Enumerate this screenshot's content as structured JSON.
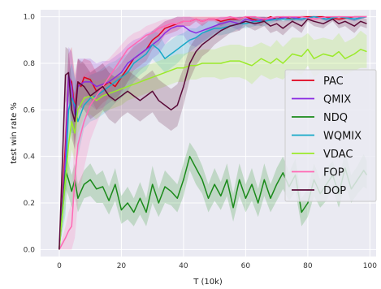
{
  "chart_data": {
    "type": "line",
    "xlabel": "T (10k)",
    "ylabel": "test win rate %",
    "xlim": [
      -6,
      102
    ],
    "ylim": [
      -0.03,
      1.03
    ],
    "xticks": [
      0,
      20,
      40,
      60,
      80,
      100
    ],
    "yticks": [
      0.0,
      0.2,
      0.4,
      0.6,
      0.8,
      1.0
    ],
    "ytick_labels": [
      "0.0",
      "0.2",
      "0.4",
      "0.6",
      "0.8",
      "1.0"
    ],
    "grid": true,
    "legend_position": "center-right",
    "background": "#eaeaf2",
    "series": [
      {
        "name": "PAC",
        "color": "#e0001b",
        "x": [
          0,
          2,
          3,
          4,
          5,
          6,
          7,
          8,
          10,
          12,
          14,
          16,
          18,
          20,
          22,
          24,
          26,
          28,
          30,
          32,
          34,
          36,
          38,
          40,
          42,
          44,
          46,
          48,
          50,
          52,
          55,
          58,
          60,
          62,
          65,
          68,
          70,
          72,
          75,
          78,
          80,
          85,
          90,
          95,
          99
        ],
        "y": [
          0.0,
          0.45,
          0.74,
          0.72,
          0.6,
          0.72,
          0.7,
          0.74,
          0.73,
          0.68,
          0.7,
          0.72,
          0.7,
          0.74,
          0.78,
          0.82,
          0.84,
          0.86,
          0.9,
          0.92,
          0.95,
          0.96,
          0.97,
          0.98,
          0.98,
          0.99,
          0.98,
          0.99,
          0.99,
          0.98,
          0.99,
          0.99,
          1.0,
          0.99,
          0.98,
          1.0,
          0.99,
          1.0,
          0.99,
          1.0,
          1.0,
          1.0,
          0.99,
          1.0,
          1.0
        ],
        "band": [
          0.0,
          0.15,
          0.1,
          0.15,
          0.15,
          0.1,
          0.1,
          0.08,
          0.08,
          0.08,
          0.07,
          0.07,
          0.07,
          0.06,
          0.06,
          0.05,
          0.05,
          0.05,
          0.04,
          0.04,
          0.03,
          0.03,
          0.03,
          0.02,
          0.02,
          0.01,
          0.02,
          0.01,
          0.01,
          0.02,
          0.01,
          0.01,
          0.0,
          0.01,
          0.02,
          0.0,
          0.01,
          0.0,
          0.01,
          0.0,
          0.0,
          0.0,
          0.01,
          0.0,
          0.0
        ]
      },
      {
        "name": "QMIX",
        "color": "#8a2be2",
        "x": [
          0,
          2,
          3,
          4,
          5,
          6,
          8,
          10,
          12,
          14,
          16,
          18,
          20,
          22,
          24,
          26,
          28,
          30,
          32,
          34,
          36,
          38,
          40,
          42,
          44,
          46,
          48,
          50,
          52,
          55,
          58,
          60,
          63,
          66,
          70,
          74,
          78,
          82,
          86,
          90,
          95,
          99
        ],
        "y": [
          0.0,
          0.4,
          0.75,
          0.7,
          0.58,
          0.7,
          0.72,
          0.72,
          0.7,
          0.71,
          0.72,
          0.74,
          0.76,
          0.8,
          0.82,
          0.84,
          0.86,
          0.88,
          0.9,
          0.93,
          0.95,
          0.96,
          0.96,
          0.94,
          0.93,
          0.94,
          0.95,
          0.96,
          0.97,
          0.98,
          0.97,
          0.99,
          0.98,
          0.99,
          0.99,
          1.0,
          0.99,
          1.0,
          0.99,
          1.0,
          0.99,
          1.0
        ],
        "band": [
          0.0,
          0.15,
          0.12,
          0.15,
          0.15,
          0.12,
          0.1,
          0.1,
          0.1,
          0.1,
          0.09,
          0.09,
          0.09,
          0.08,
          0.08,
          0.07,
          0.07,
          0.06,
          0.06,
          0.05,
          0.04,
          0.04,
          0.04,
          0.06,
          0.06,
          0.05,
          0.04,
          0.03,
          0.03,
          0.02,
          0.03,
          0.01,
          0.02,
          0.01,
          0.01,
          0.0,
          0.01,
          0.0,
          0.01,
          0.0,
          0.01,
          0.0
        ]
      },
      {
        "name": "NDQ",
        "color": "#1a8a1a",
        "x": [
          0,
          2,
          3,
          4,
          5,
          6,
          8,
          10,
          12,
          14,
          16,
          18,
          20,
          22,
          24,
          26,
          28,
          30,
          32,
          34,
          36,
          38,
          40,
          42,
          44,
          46,
          48,
          50,
          52,
          54,
          56,
          58,
          60,
          62,
          64,
          66,
          68,
          70,
          72,
          74,
          76,
          78,
          80,
          82,
          84,
          86,
          88,
          90,
          92,
          94,
          96,
          98,
          99
        ],
        "y": [
          0.0,
          0.34,
          0.3,
          0.25,
          0.3,
          0.22,
          0.28,
          0.3,
          0.26,
          0.27,
          0.21,
          0.28,
          0.17,
          0.2,
          0.16,
          0.22,
          0.16,
          0.28,
          0.2,
          0.27,
          0.25,
          0.22,
          0.3,
          0.4,
          0.35,
          0.3,
          0.22,
          0.28,
          0.23,
          0.3,
          0.18,
          0.3,
          0.22,
          0.28,
          0.2,
          0.3,
          0.22,
          0.28,
          0.33,
          0.27,
          0.32,
          0.16,
          0.2,
          0.3,
          0.24,
          0.28,
          0.32,
          0.24,
          0.35,
          0.26,
          0.3,
          0.34,
          0.32
        ],
        "band": [
          0.0,
          0.08,
          0.07,
          0.07,
          0.07,
          0.06,
          0.06,
          0.07,
          0.06,
          0.07,
          0.06,
          0.07,
          0.06,
          0.07,
          0.06,
          0.07,
          0.06,
          0.08,
          0.06,
          0.07,
          0.06,
          0.06,
          0.07,
          0.06,
          0.07,
          0.06,
          0.06,
          0.07,
          0.06,
          0.07,
          0.06,
          0.07,
          0.06,
          0.07,
          0.06,
          0.07,
          0.06,
          0.07,
          0.07,
          0.06,
          0.07,
          0.06,
          0.06,
          0.07,
          0.06,
          0.07,
          0.06,
          0.06,
          0.07,
          0.06,
          0.06,
          0.07,
          0.06
        ]
      },
      {
        "name": "WQMIX",
        "color": "#17a9c8",
        "x": [
          0,
          2,
          3,
          4,
          5,
          6,
          8,
          10,
          12,
          14,
          16,
          18,
          20,
          22,
          24,
          26,
          28,
          30,
          32,
          34,
          36,
          38,
          40,
          42,
          44,
          46,
          48,
          50,
          52,
          55,
          58,
          60,
          63,
          66,
          70,
          74,
          78,
          82,
          86,
          90,
          95,
          99
        ],
        "y": [
          0.0,
          0.3,
          0.6,
          0.65,
          0.62,
          0.55,
          0.62,
          0.65,
          0.66,
          0.68,
          0.7,
          0.72,
          0.74,
          0.76,
          0.8,
          0.82,
          0.84,
          0.88,
          0.86,
          0.82,
          0.84,
          0.86,
          0.88,
          0.9,
          0.91,
          0.93,
          0.94,
          0.95,
          0.95,
          0.96,
          0.97,
          0.97,
          0.98,
          0.98,
          0.99,
          0.99,
          0.99,
          1.0,
          0.99,
          1.0,
          0.99,
          1.0
        ],
        "band": [
          0.0,
          0.15,
          0.15,
          0.15,
          0.12,
          0.15,
          0.1,
          0.1,
          0.1,
          0.1,
          0.1,
          0.09,
          0.09,
          0.08,
          0.08,
          0.07,
          0.07,
          0.06,
          0.07,
          0.06,
          0.06,
          0.06,
          0.05,
          0.05,
          0.04,
          0.04,
          0.04,
          0.03,
          0.03,
          0.03,
          0.02,
          0.02,
          0.02,
          0.02,
          0.01,
          0.01,
          0.01,
          0.0,
          0.01,
          0.0,
          0.01,
          0.0
        ]
      },
      {
        "name": "VDAC",
        "color": "#9bea2a",
        "x": [
          0,
          2,
          3,
          4,
          5,
          6,
          8,
          10,
          12,
          14,
          16,
          18,
          20,
          22,
          24,
          26,
          28,
          30,
          32,
          34,
          36,
          38,
          40,
          42,
          44,
          46,
          48,
          50,
          52,
          55,
          58,
          60,
          62,
          65,
          68,
          70,
          72,
          75,
          78,
          80,
          82,
          85,
          88,
          90,
          92,
          95,
          97,
          99
        ],
        "y": [
          0.0,
          0.3,
          0.45,
          0.55,
          0.5,
          0.6,
          0.65,
          0.66,
          0.64,
          0.66,
          0.67,
          0.68,
          0.69,
          0.7,
          0.71,
          0.72,
          0.73,
          0.74,
          0.75,
          0.76,
          0.77,
          0.78,
          0.78,
          0.79,
          0.79,
          0.8,
          0.8,
          0.8,
          0.8,
          0.81,
          0.81,
          0.8,
          0.79,
          0.82,
          0.8,
          0.82,
          0.8,
          0.84,
          0.83,
          0.86,
          0.82,
          0.84,
          0.83,
          0.85,
          0.82,
          0.84,
          0.86,
          0.85
        ],
        "band": [
          0.0,
          0.12,
          0.12,
          0.12,
          0.12,
          0.1,
          0.08,
          0.08,
          0.08,
          0.07,
          0.07,
          0.07,
          0.07,
          0.06,
          0.06,
          0.06,
          0.06,
          0.06,
          0.06,
          0.06,
          0.06,
          0.06,
          0.06,
          0.06,
          0.06,
          0.06,
          0.06,
          0.06,
          0.07,
          0.07,
          0.07,
          0.07,
          0.08,
          0.07,
          0.07,
          0.08,
          0.07,
          0.07,
          0.08,
          0.07,
          0.08,
          0.07,
          0.07,
          0.08,
          0.07,
          0.07,
          0.08,
          0.07
        ]
      },
      {
        "name": "FOP",
        "color": "#ff69b4",
        "x": [
          0,
          2,
          3,
          4,
          5,
          6,
          8,
          10,
          12,
          14,
          16,
          18,
          20,
          22,
          24,
          26,
          28,
          30,
          32,
          34,
          36,
          38,
          40,
          42,
          44,
          46,
          48,
          50,
          52,
          55,
          58,
          60,
          63,
          66,
          70,
          74,
          78,
          82,
          86,
          90,
          95,
          99
        ],
        "y": [
          0.0,
          0.05,
          0.08,
          0.1,
          0.3,
          0.45,
          0.55,
          0.62,
          0.66,
          0.7,
          0.74,
          0.78,
          0.82,
          0.86,
          0.88,
          0.9,
          0.92,
          0.93,
          0.95,
          0.96,
          0.97,
          0.97,
          0.98,
          0.98,
          0.99,
          0.98,
          0.99,
          0.99,
          0.99,
          1.0,
          0.99,
          1.0,
          1.0,
          0.99,
          1.0,
          1.0,
          1.0,
          0.99,
          1.0,
          1.0,
          1.0,
          1.0
        ],
        "band": [
          0.0,
          0.05,
          0.08,
          0.1,
          0.25,
          0.25,
          0.2,
          0.15,
          0.12,
          0.1,
          0.08,
          0.07,
          0.06,
          0.05,
          0.05,
          0.04,
          0.04,
          0.04,
          0.03,
          0.03,
          0.02,
          0.02,
          0.02,
          0.02,
          0.01,
          0.02,
          0.01,
          0.01,
          0.01,
          0.0,
          0.01,
          0.0,
          0.0,
          0.01,
          0.0,
          0.0,
          0.0,
          0.01,
          0.0,
          0.0,
          0.0,
          0.0
        ]
      },
      {
        "name": "DOP",
        "color": "#5a0a38",
        "x": [
          0,
          2,
          3,
          4,
          5,
          6,
          8,
          10,
          12,
          14,
          16,
          18,
          20,
          22,
          24,
          26,
          28,
          30,
          32,
          34,
          36,
          38,
          40,
          42,
          44,
          46,
          48,
          50,
          52,
          55,
          58,
          60,
          63,
          66,
          68,
          70,
          72,
          75,
          78,
          80,
          82,
          85,
          88,
          90,
          92,
          95,
          97,
          99
        ],
        "y": [
          0.0,
          0.75,
          0.76,
          0.6,
          0.55,
          0.72,
          0.7,
          0.66,
          0.68,
          0.7,
          0.66,
          0.64,
          0.66,
          0.68,
          0.66,
          0.64,
          0.66,
          0.68,
          0.64,
          0.62,
          0.6,
          0.62,
          0.7,
          0.8,
          0.85,
          0.88,
          0.9,
          0.92,
          0.94,
          0.96,
          0.97,
          0.98,
          0.97,
          0.98,
          0.96,
          0.97,
          0.95,
          0.98,
          0.96,
          0.99,
          0.98,
          0.97,
          0.99,
          0.97,
          0.98,
          0.96,
          0.98,
          0.97
        ],
        "band": [
          0.0,
          0.12,
          0.1,
          0.12,
          0.12,
          0.1,
          0.1,
          0.1,
          0.1,
          0.1,
          0.1,
          0.1,
          0.09,
          0.09,
          0.09,
          0.09,
          0.09,
          0.09,
          0.09,
          0.09,
          0.09,
          0.09,
          0.08,
          0.07,
          0.06,
          0.05,
          0.05,
          0.04,
          0.04,
          0.03,
          0.03,
          0.02,
          0.03,
          0.02,
          0.03,
          0.03,
          0.03,
          0.02,
          0.03,
          0.01,
          0.02,
          0.02,
          0.01,
          0.02,
          0.02,
          0.03,
          0.02,
          0.02
        ]
      }
    ]
  }
}
